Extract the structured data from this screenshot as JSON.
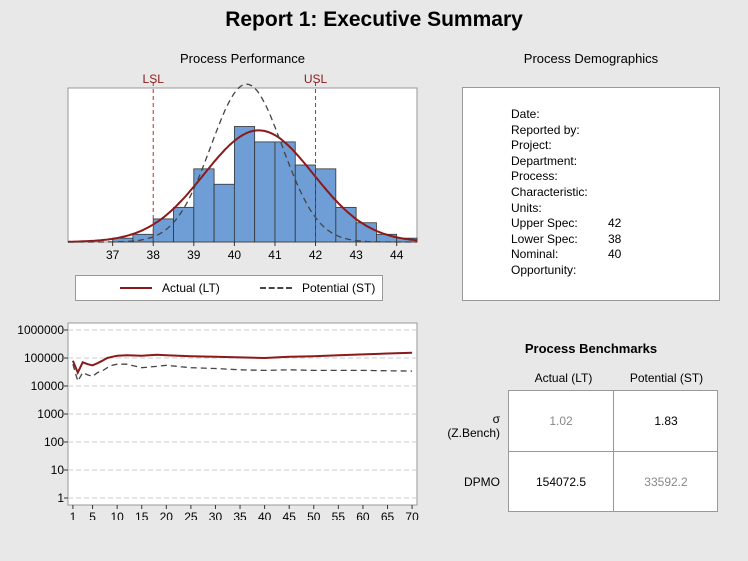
{
  "report": {
    "title": "Report 1: Executive Summary"
  },
  "performance": {
    "title": "Process Performance",
    "lsl_label": "LSL",
    "usl_label": "USL",
    "legend": {
      "actual": "Actual (LT)",
      "potential": "Potential (ST)"
    }
  },
  "demographics": {
    "title": "Process Demographics",
    "fields": [
      {
        "label": "Date:",
        "value": ""
      },
      {
        "label": "Reported by:",
        "value": ""
      },
      {
        "label": "Project:",
        "value": ""
      },
      {
        "label": "Department:",
        "value": ""
      },
      {
        "label": "Process:",
        "value": ""
      },
      {
        "label": "Characteristic:",
        "value": ""
      },
      {
        "label": "Units:",
        "value": ""
      },
      {
        "label": "Upper Spec:",
        "value": "42"
      },
      {
        "label": "Lower Spec:",
        "value": "38"
      },
      {
        "label": "Nominal:",
        "value": "40"
      },
      {
        "label": "Opportunity:",
        "value": ""
      }
    ]
  },
  "benchmarks": {
    "title": "Process Benchmarks",
    "col_actual": "Actual (LT)",
    "col_potential": "Potential (ST)",
    "row_sigma_symbol": "σ",
    "row_sigma_label": "(Z.Bench)",
    "row_dpmo": "DPMO",
    "sigma_actual": "1.02",
    "sigma_potential": "1.83",
    "dpmo_actual": "154072.5",
    "dpmo_potential": "33592.2"
  },
  "colors": {
    "bar": "#6f9ed6",
    "actual": "#8b1a1a",
    "potential": "#444444",
    "spec": "#b03030"
  },
  "chart_data": [
    {
      "type": "bar",
      "name": "histogram",
      "bin_width": 0.5,
      "bin_starts": [
        37.0,
        37.5,
        38.0,
        38.5,
        39.0,
        39.5,
        40.0,
        40.5,
        41.0,
        41.5,
        42.0,
        42.5,
        43.0,
        43.5,
        44.0
      ],
      "values": [
        1,
        2,
        6,
        9,
        19,
        15,
        30,
        26,
        26,
        20,
        19,
        9,
        5,
        2,
        1
      ],
      "xlim": [
        35.9,
        44.5
      ],
      "ylim": [
        0,
        40
      ],
      "xticks": [
        37,
        38,
        39,
        40,
        41,
        42,
        43,
        44
      ],
      "lsl": 38,
      "usl": 42,
      "curves": [
        {
          "name": "Actual (LT)",
          "mean": 40.6,
          "sd": 1.35,
          "peak": 29
        },
        {
          "name": "Potential (ST)",
          "mean": 40.3,
          "sd": 0.88,
          "peak": 41
        }
      ]
    },
    {
      "type": "line",
      "name": "dpmo-trend",
      "yscale": "log",
      "ylim": [
        1,
        1000000
      ],
      "yticks": [
        1,
        10,
        100,
        1000,
        10000,
        100000,
        1000000
      ],
      "ytick_labels": [
        "1",
        "10",
        "100",
        "1000",
        "10000",
        "100000",
        "1000000"
      ],
      "xlim": [
        0,
        71
      ],
      "xticks": [
        1,
        5,
        10,
        15,
        20,
        25,
        30,
        35,
        40,
        45,
        50,
        55,
        60,
        65,
        70
      ],
      "series": [
        {
          "name": "Actual (LT)",
          "x": [
            1,
            2,
            3,
            4,
            5,
            6,
            7,
            8,
            9,
            10,
            12,
            15,
            18,
            20,
            25,
            30,
            35,
            40,
            45,
            50,
            55,
            60,
            65,
            70
          ],
          "y": [
            80000,
            30000,
            70000,
            60000,
            55000,
            65000,
            80000,
            100000,
            110000,
            120000,
            125000,
            120000,
            130000,
            125000,
            115000,
            110000,
            105000,
            100000,
            110000,
            115000,
            125000,
            135000,
            145000,
            155000
          ]
        },
        {
          "name": "Potential (ST)",
          "x": [
            1,
            2,
            3,
            4,
            5,
            6,
            7,
            8,
            9,
            10,
            12,
            15,
            18,
            20,
            25,
            30,
            35,
            40,
            45,
            50,
            55,
            60,
            65,
            70
          ],
          "y": [
            60000,
            15000,
            30000,
            25000,
            22000,
            30000,
            35000,
            45000,
            55000,
            60000,
            60000,
            45000,
            50000,
            55000,
            45000,
            42000,
            38000,
            36000,
            38000,
            36000,
            36000,
            36000,
            35000,
            34000
          ]
        }
      ]
    }
  ]
}
